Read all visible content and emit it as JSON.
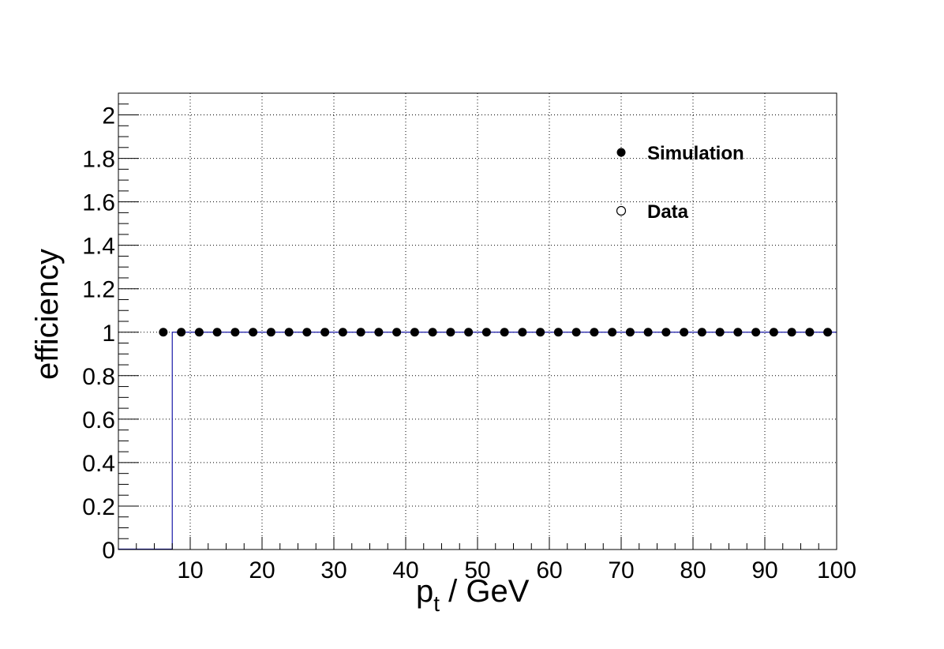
{
  "chart_data": {
    "type": "scatter",
    "title": "",
    "xlabel": {
      "main": "p",
      "sub": "t",
      "suffix": " / GeV"
    },
    "ylabel": "efficiency",
    "xlim": [
      0,
      100
    ],
    "ylim": [
      0,
      2.1
    ],
    "grid": true,
    "legend_position": "top-right",
    "x_ticks": [
      "10",
      "20",
      "30",
      "40",
      "50",
      "60",
      "70",
      "80",
      "90",
      "100"
    ],
    "y_ticks": [
      "0",
      "0.2",
      "0.4",
      "0.6",
      "0.8",
      "1",
      "1.2",
      "1.4",
      "1.6",
      "1.8",
      "2"
    ],
    "series": [
      {
        "name": "Simulation",
        "marker": "filled-circle",
        "color": "#000000",
        "x": [
          6.25,
          8.75,
          11.25,
          13.75,
          16.25,
          18.75,
          21.25,
          23.75,
          26.25,
          28.75,
          31.25,
          33.75,
          36.25,
          38.75,
          41.25,
          43.75,
          46.25,
          48.75,
          51.25,
          53.75,
          56.25,
          58.75,
          61.25,
          63.75,
          66.25,
          68.75,
          71.25,
          73.75,
          76.25,
          78.75,
          81.25,
          83.75,
          86.25,
          88.75,
          91.25,
          93.75,
          96.25,
          98.75
        ],
        "y": [
          1,
          1,
          1,
          1,
          1,
          1,
          1,
          1,
          1,
          1,
          1,
          1,
          1,
          1,
          1,
          1,
          1,
          1,
          1,
          1,
          1,
          1,
          1,
          1,
          1,
          1,
          1,
          1,
          1,
          1,
          1,
          1,
          1,
          1,
          1,
          1,
          1,
          1
        ]
      },
      {
        "name": "Data",
        "marker": "open-circle",
        "color": "#000000",
        "x": [],
        "y": []
      }
    ],
    "histogram": {
      "color": "#1a1aa8",
      "step_x": 7.5,
      "level": 1
    }
  }
}
